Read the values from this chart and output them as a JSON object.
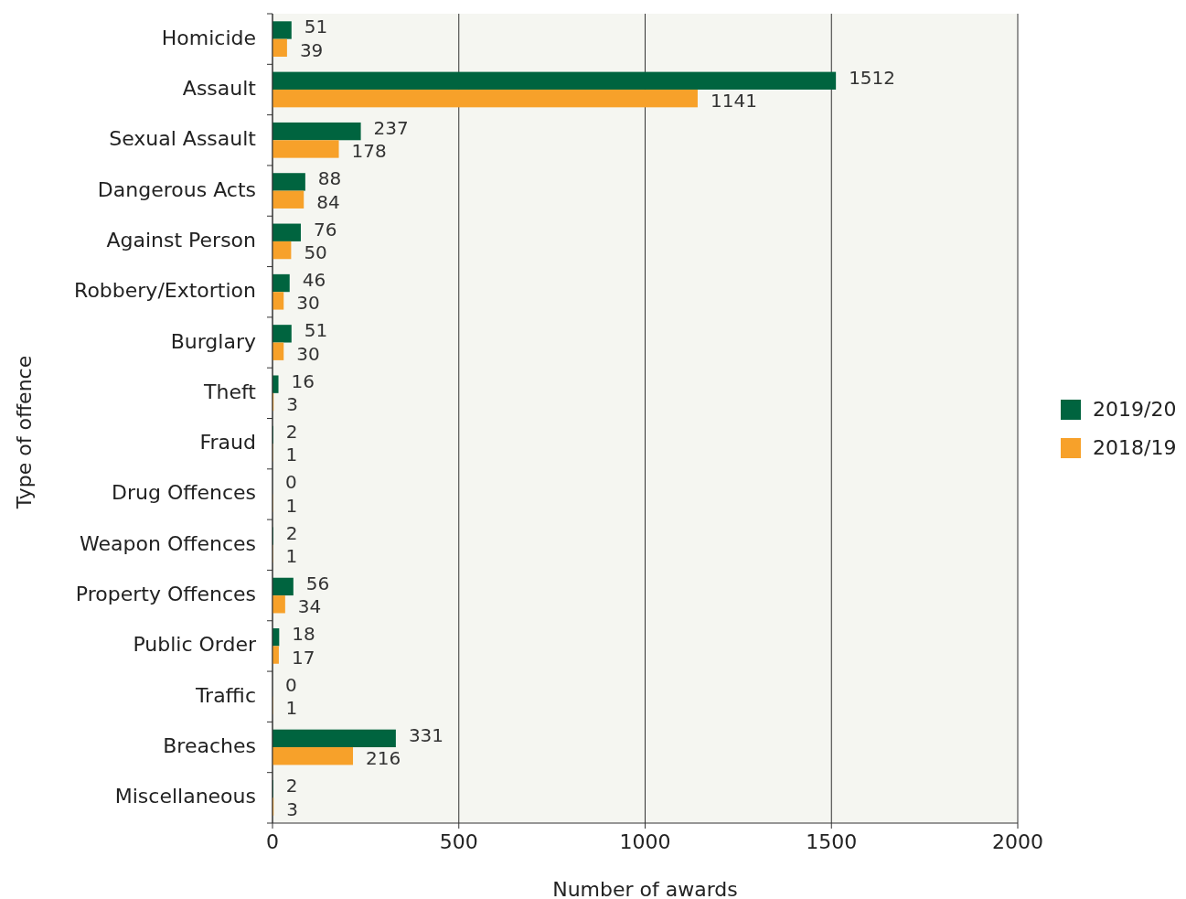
{
  "chart_data": {
    "type": "bar",
    "orientation": "horizontal",
    "xlabel": "Number of awards",
    "ylabel": "Type of offence",
    "categories": [
      "Homicide",
      "Assault",
      "Sexual Assault",
      "Dangerous Acts",
      "Against Person",
      "Robbery/Extortion",
      "Burglary",
      "Theft",
      "Fraud",
      "Drug Offences",
      "Weapon Offences",
      "Property Offences",
      "Public Order",
      "Traffic",
      "Breaches",
      "Miscellaneous"
    ],
    "series": [
      {
        "name": "2019/20",
        "color": "#00643f",
        "values": [
          51,
          1512,
          237,
          88,
          76,
          46,
          51,
          16,
          2,
          0,
          2,
          56,
          18,
          0,
          331,
          2
        ]
      },
      {
        "name": "2018/19",
        "color": "#f7a12a",
        "values": [
          39,
          1141,
          178,
          84,
          50,
          30,
          30,
          3,
          1,
          1,
          1,
          34,
          17,
          1,
          216,
          3
        ]
      }
    ],
    "xlim": [
      0,
      2000
    ],
    "xticks": [
      0,
      500,
      1000,
      1500,
      2000
    ],
    "grid": "x",
    "legend": "right",
    "data_labels": true
  }
}
